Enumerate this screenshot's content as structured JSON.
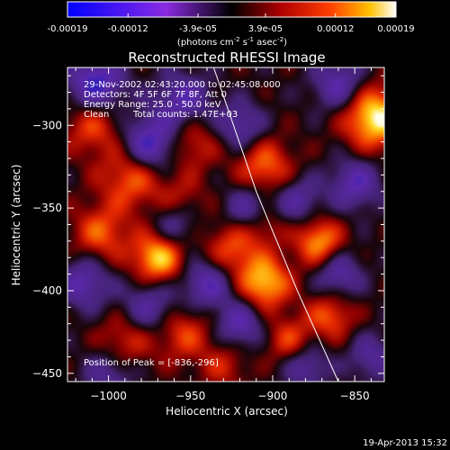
{
  "colorbar": {
    "tick_labels": [
      "-0.00019",
      "-0.00012",
      "-3.9e-05",
      "3.9e-05",
      "0.00012",
      "0.00019"
    ],
    "tick_values": [
      -0.00019,
      -0.00012,
      -3.9e-05,
      3.9e-05,
      0.00012,
      0.00019
    ],
    "range": [
      -0.00019,
      0.00019
    ],
    "unit_main": "(photons cm",
    "unit_sup1": "-2",
    "unit_mid": " s",
    "unit_sup2": "-1",
    "unit_end": " asec",
    "unit_sup3": "-2",
    "unit_close": ")"
  },
  "chart_data": {
    "type": "heatmap",
    "title": "Reconstructed RHESSI Image",
    "xlabel": "Heliocentric X (arcsec)",
    "ylabel": "Heliocentric Y (arcsec)",
    "xlim": [
      -1025,
      -832
    ],
    "ylim": [
      -455,
      -265
    ],
    "x_ticks": [
      -1000,
      -950,
      -900,
      -850
    ],
    "x_tick_labels": [
      "−1000",
      "−950",
      "−900",
      "−850"
    ],
    "y_ticks": [
      -300,
      -350,
      -400,
      -450
    ],
    "y_tick_labels": [
      "−300",
      "−350",
      "−400",
      "−450"
    ],
    "annotations": [
      "29-Nov-2002 02:43:20.000 to 02:45:08.000",
      "Detectors: 4F 5F 6F 7F 8F, Att 0",
      "Energy Range: 25.0 - 50.0 keV",
      "Clean",
      "Total counts: 1.47E+03"
    ],
    "peak_label": "Position of Peak = [-836,-296]",
    "peak_position": [
      -836,
      -296
    ],
    "limb_points": [
      [
        -937,
        -262
      ],
      [
        -910,
        -340
      ],
      [
        -885,
        -400
      ],
      [
        -860,
        -455
      ]
    ],
    "colormap": "red-temperature (blue-purple negative, red-yellow-white positive)",
    "blobs": [
      [
        -838,
        -295,
        1.0,
        13
      ],
      [
        -872,
        -370,
        0.75,
        10
      ],
      [
        -865,
        -415,
        0.55,
        10
      ],
      [
        -905,
        -325,
        0.6,
        12
      ],
      [
        -925,
        -375,
        0.55,
        12
      ],
      [
        -985,
        -330,
        0.65,
        14
      ],
      [
        -1005,
        -365,
        0.55,
        12
      ],
      [
        -970,
        -380,
        0.9,
        11
      ],
      [
        -905,
        -395,
        0.85,
        11
      ],
      [
        -890,
        -430,
        0.5,
        10
      ],
      [
        -955,
        -425,
        0.5,
        12
      ],
      [
        -990,
        -430,
        0.45,
        12
      ],
      [
        -950,
        -310,
        0.45,
        12
      ],
      [
        -1010,
        -300,
        0.5,
        12
      ],
      [
        -905,
        -360,
        0.35,
        9
      ],
      [
        -955,
        -345,
        0.3,
        10
      ],
      [
        -930,
        -445,
        0.35,
        10
      ],
      [
        -975,
        -312,
        -0.9,
        12
      ],
      [
        -1008,
        -275,
        -0.8,
        12
      ],
      [
        -955,
        -285,
        -0.6,
        12
      ],
      [
        -920,
        -300,
        -0.55,
        10
      ],
      [
        -860,
        -275,
        -0.6,
        11
      ],
      [
        -850,
        -335,
        -0.6,
        11
      ],
      [
        -885,
        -345,
        -0.5,
        10
      ],
      [
        -915,
        -350,
        -0.55,
        10
      ],
      [
        -940,
        -395,
        -0.65,
        11
      ],
      [
        -975,
        -410,
        -0.55,
        12
      ],
      [
        -1015,
        -395,
        -0.6,
        11
      ],
      [
        -860,
        -390,
        -0.55,
        10
      ],
      [
        -880,
        -445,
        -0.5,
        10
      ],
      [
        -920,
        -420,
        -0.6,
        10
      ],
      [
        -1000,
        -450,
        -0.45,
        11
      ],
      [
        -960,
        -360,
        -0.45,
        10
      ],
      [
        -840,
        -440,
        -0.45,
        10
      ]
    ]
  },
  "timestamp": "19-Apr-2013 15:32"
}
